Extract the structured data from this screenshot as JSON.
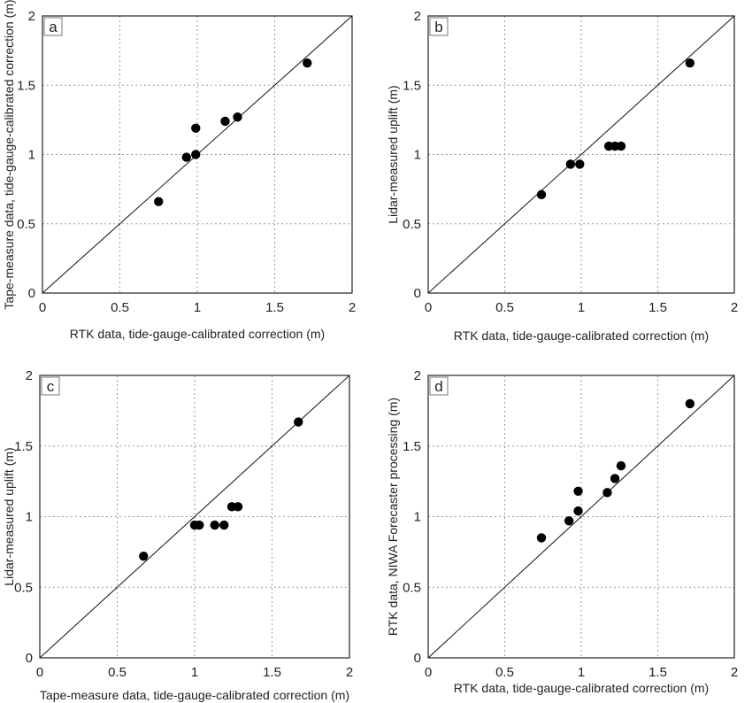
{
  "chart_data": [
    {
      "panel": "a",
      "type": "scatter",
      "xlabel": "RTK data, tide-gauge-calibrated correction (m)",
      "ylabel": "Tape-measure data, tide-gauge-calibrated correction (m)",
      "xlim": [
        0,
        2
      ],
      "ylim": [
        0,
        2
      ],
      "xticks": [
        "0",
        "0.5",
        "1",
        "1.5",
        "2"
      ],
      "yticks": [
        "0",
        "0.5",
        "1",
        "1.5",
        "2"
      ],
      "grid": true,
      "reference_line": "1:1",
      "points": [
        {
          "x": 0.75,
          "y": 0.66
        },
        {
          "x": 0.93,
          "y": 0.98
        },
        {
          "x": 0.99,
          "y": 1.0
        },
        {
          "x": 0.99,
          "y": 1.19
        },
        {
          "x": 1.18,
          "y": 1.24
        },
        {
          "x": 1.26,
          "y": 1.27
        },
        {
          "x": 1.71,
          "y": 1.66
        }
      ]
    },
    {
      "panel": "b",
      "type": "scatter",
      "xlabel": "RTK data, tide-gauge-calibrated correction (m)",
      "ylabel": "Lidar-measured uplift (m)",
      "xlim": [
        0,
        2
      ],
      "ylim": [
        0,
        2
      ],
      "xticks": [
        "0",
        "0.5",
        "1",
        "1.5",
        "2"
      ],
      "yticks": [
        "0",
        "0.5",
        "1",
        "1.5",
        "2"
      ],
      "grid": true,
      "reference_line": "1:1",
      "points": [
        {
          "x": 0.74,
          "y": 0.71
        },
        {
          "x": 0.93,
          "y": 0.93
        },
        {
          "x": 0.99,
          "y": 0.93
        },
        {
          "x": 1.18,
          "y": 1.06
        },
        {
          "x": 1.22,
          "y": 1.06
        },
        {
          "x": 1.26,
          "y": 1.06
        },
        {
          "x": 1.71,
          "y": 1.66
        }
      ]
    },
    {
      "panel": "c",
      "type": "scatter",
      "xlabel": "Tape-measure data, tide-gauge-calibrated correction (m)",
      "ylabel": "Lidar-measured uplift (m)",
      "xlim": [
        0,
        2
      ],
      "ylim": [
        0,
        2
      ],
      "xticks": [
        "0",
        "0.5",
        "1",
        "1.5",
        "2"
      ],
      "yticks": [
        "0",
        "0.5",
        "1",
        "1.5",
        "2"
      ],
      "grid": true,
      "reference_line": "1:1",
      "points": [
        {
          "x": 0.67,
          "y": 0.72
        },
        {
          "x": 1.0,
          "y": 0.94
        },
        {
          "x": 1.03,
          "y": 0.94
        },
        {
          "x": 1.13,
          "y": 0.94
        },
        {
          "x": 1.19,
          "y": 0.94
        },
        {
          "x": 1.24,
          "y": 1.07
        },
        {
          "x": 1.28,
          "y": 1.07
        },
        {
          "x": 1.67,
          "y": 1.67
        }
      ]
    },
    {
      "panel": "d",
      "type": "scatter",
      "xlabel": "RTK data, tide-gauge-calibrated correction (m)",
      "ylabel": "RTK data, NIWA Forecaster  processing (m)",
      "xlim": [
        0,
        2
      ],
      "ylim": [
        0,
        2
      ],
      "xticks": [
        "0",
        "0.5",
        "1",
        "1.5",
        "2"
      ],
      "yticks": [
        "0",
        "0.5",
        "1",
        "1.5",
        "2"
      ],
      "grid": true,
      "reference_line": "1:1",
      "points": [
        {
          "x": 0.74,
          "y": 0.85
        },
        {
          "x": 0.92,
          "y": 0.97
        },
        {
          "x": 0.98,
          "y": 1.04
        },
        {
          "x": 0.98,
          "y": 1.18
        },
        {
          "x": 1.17,
          "y": 1.17
        },
        {
          "x": 1.22,
          "y": 1.27
        },
        {
          "x": 1.26,
          "y": 1.36
        },
        {
          "x": 1.71,
          "y": 1.8
        }
      ]
    }
  ]
}
